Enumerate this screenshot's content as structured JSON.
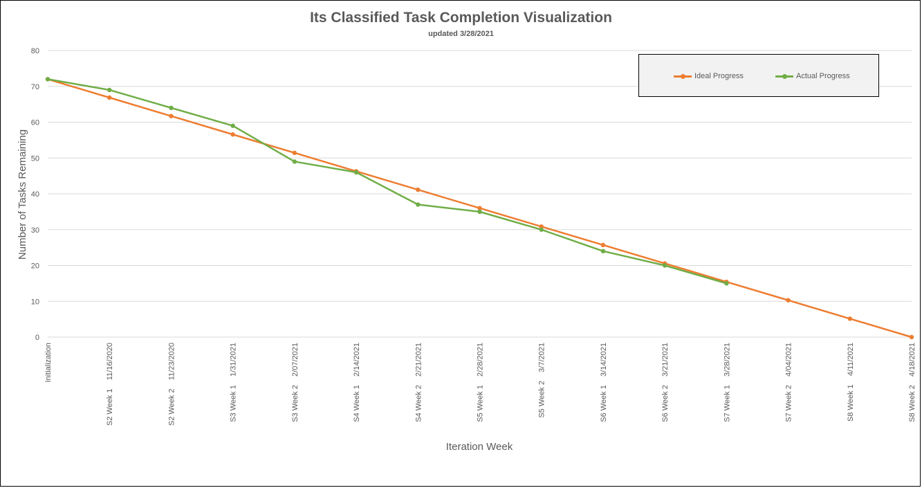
{
  "chart_data": {
    "type": "line",
    "title": "Its Classified Task Completion Visualization",
    "subtitle": "updated 3/28/2021",
    "xlabel": "Iteration Week",
    "ylabel": "Number of Tasks Remaining",
    "ylim": [
      0,
      80
    ],
    "yticks": [
      0,
      10,
      20,
      30,
      40,
      50,
      60,
      70,
      80
    ],
    "grid": true,
    "legend_position": "top-right",
    "categories": [
      "Initialization",
      "S2 Week 1    11/16/2020",
      "S2 Week 2    11/23/2020",
      "S3 Week 1    1/31/2021",
      "S3 Week 2    2/07/2021",
      "S4 Week 1    2/14/2021",
      "S4 Week 2    2/21/2021",
      "S5 Week 1    2/28/2021",
      "S5 Week 2    3/7/2021",
      "S6 Week 1    3/14/2021",
      "S6 Week 2    3/21/2021",
      "S7 Week 1    3/28/2021",
      "S7 Week 2    4/04/2021",
      "S8 Week 1    4/11/2021",
      "S8 Week 2    4/18/2021"
    ],
    "series": [
      {
        "name": "Ideal Progress",
        "color": "#ed7d31",
        "values": [
          72,
          66.86,
          61.71,
          56.57,
          51.43,
          46.29,
          41.14,
          36,
          30.86,
          25.71,
          20.57,
          15.43,
          10.29,
          5.14,
          0
        ]
      },
      {
        "name": "Actual Progress",
        "color": "#70ad47",
        "values": [
          72,
          69,
          64,
          59,
          49,
          46,
          37,
          35,
          30,
          24,
          20,
          15,
          null,
          null,
          null
        ]
      }
    ]
  }
}
